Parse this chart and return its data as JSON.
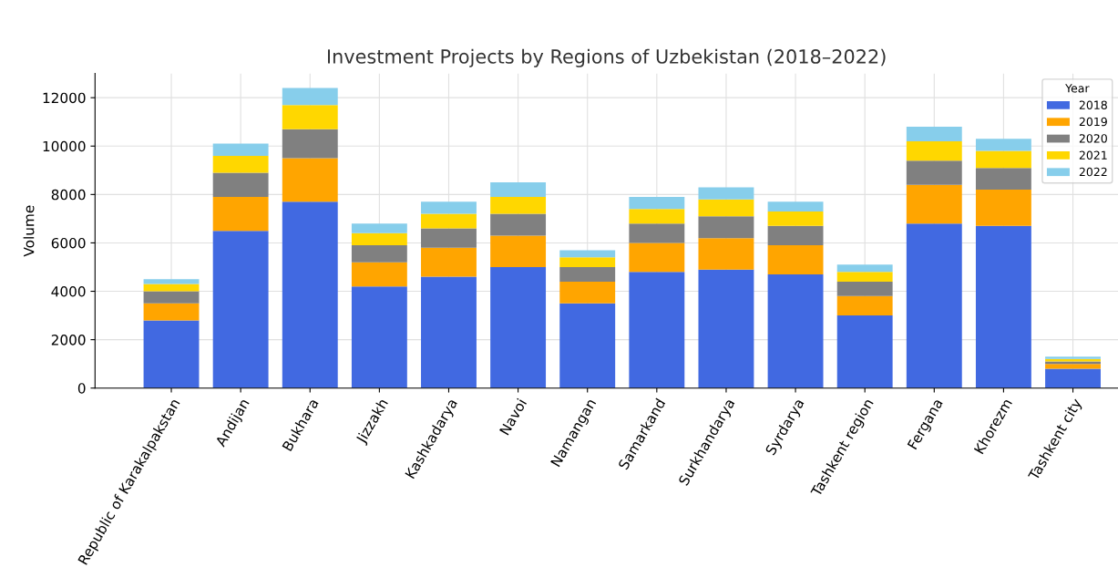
{
  "chart_data": {
    "type": "bar",
    "stacked": true,
    "title": "Investment Projects by Regions of Uzbekistan (2018–2022)",
    "ylabel": "Volume",
    "legend_title": "Year",
    "legend": "top right",
    "grid": true,
    "categories": [
      "Republic of Karakalpakstan",
      "Andijan",
      "Bukhara",
      "Jizzakh",
      "Kashkadarya",
      "Navoi",
      "Namangan",
      "Samarkand",
      "Surkhandarya",
      "Syrdarya",
      "Tashkent region",
      "Fergana",
      "Khorezm",
      "Tashkent city"
    ],
    "ylim": [
      0,
      13000
    ],
    "yticks": [
      0,
      2000,
      4000,
      6000,
      8000,
      10000,
      12000
    ],
    "series": [
      {
        "name": "2018",
        "color": "#4169e1",
        "values": [
          2800,
          6500,
          7700,
          4200,
          4600,
          5000,
          3500,
          4800,
          4900,
          4700,
          3000,
          6800,
          6700,
          800
        ]
      },
      {
        "name": "2019",
        "color": "#ffa500",
        "values": [
          700,
          1400,
          1800,
          1000,
          1200,
          1300,
          900,
          1200,
          1300,
          1200,
          800,
          1600,
          1500,
          200
        ]
      },
      {
        "name": "2020",
        "color": "#808080",
        "values": [
          500,
          1000,
          1200,
          700,
          800,
          900,
          600,
          800,
          900,
          800,
          600,
          1000,
          900,
          100
        ]
      },
      {
        "name": "2021",
        "color": "#ffd700",
        "values": [
          300,
          700,
          1000,
          500,
          600,
          700,
          400,
          600,
          700,
          600,
          400,
          800,
          700,
          100
        ]
      },
      {
        "name": "2022",
        "color": "#87ceeb",
        "values": [
          200,
          500,
          700,
          400,
          500,
          600,
          300,
          500,
          500,
          400,
          300,
          600,
          500,
          100
        ]
      }
    ]
  }
}
